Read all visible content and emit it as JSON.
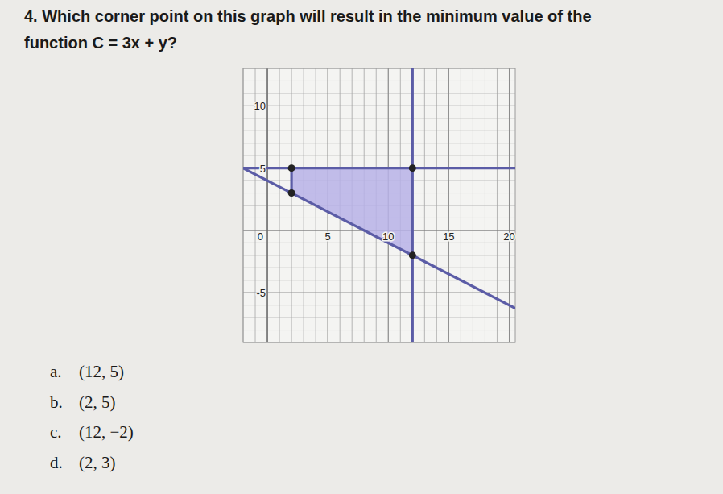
{
  "question": [
    "4. Which corner point on this graph will result in the minimum value of the",
    "function C = 3x + y?"
  ],
  "options": [
    {
      "letter": "a.",
      "text": "(12, 5)"
    },
    {
      "letter": "b.",
      "text": "(2, 5)"
    },
    {
      "letter": "c.",
      "text": "(12, −2)"
    },
    {
      "letter": "d.",
      "text": "(2, 3)"
    }
  ],
  "chart_data": {
    "type": "line",
    "xlim": [
      -2,
      20.5
    ],
    "ylim": [
      -9,
      13
    ],
    "xticks": [
      0,
      5,
      10,
      15,
      20
    ],
    "yticks": [
      -5,
      5,
      10
    ],
    "grid": true,
    "region": {
      "x": [
        2,
        12,
        12,
        2
      ],
      "values": [
        5,
        5,
        -2,
        3
      ],
      "color": "#b7b1e8"
    },
    "series": [
      {
        "x": [
          12,
          12
        ],
        "values": [
          13,
          -9
        ],
        "color": "#5b5ca6"
      },
      {
        "x": [
          -2,
          20.5
        ],
        "values": [
          5,
          5
        ],
        "color": "#5b5ca6"
      },
      {
        "x": [
          -2,
          20.5
        ],
        "values": [
          5,
          -6.25
        ],
        "color": "#5b5ca6"
      },
      {
        "x": [
          2,
          2
        ],
        "values": [
          3,
          5
        ],
        "color": "#5b5ca6"
      }
    ],
    "points": {
      "x": [
        2,
        12,
        12,
        2
      ],
      "values": [
        5,
        5,
        -2,
        3
      ],
      "color": "#222222",
      "marker": "circle"
    }
  }
}
